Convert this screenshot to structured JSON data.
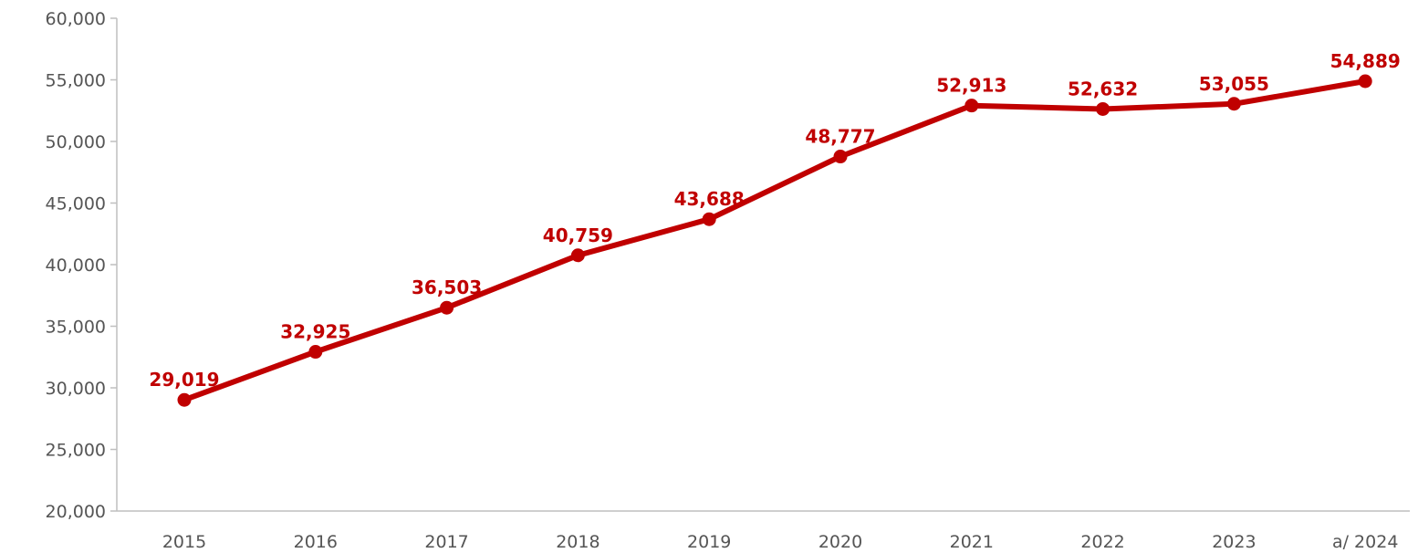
{
  "chart_data": {
    "type": "line",
    "categories": [
      "2015",
      "2016",
      "2017",
      "2018",
      "2019",
      "2020",
      "2021",
      "2022",
      "2023",
      "a/ 2024"
    ],
    "series": [
      {
        "values": [
          29019,
          32925,
          36503,
          40759,
          43688,
          48777,
          52913,
          52632,
          53055,
          54889
        ],
        "labels": [
          "29,019",
          "32,925",
          "36,503",
          "40,759",
          "43,688",
          "48,777",
          "52,913",
          "52,632",
          "53,055",
          "54,889"
        ]
      }
    ],
    "ylim": [
      20000,
      60000
    ],
    "ytick_values": [
      20000,
      25000,
      30000,
      35000,
      40000,
      45000,
      50000,
      55000,
      60000
    ],
    "ytick_labels": [
      "20,000",
      "25,000",
      "30,000",
      "35,000",
      "40,000",
      "45,000",
      "50,000",
      "55,000",
      "60,000"
    ],
    "grid": false,
    "colors": {
      "series": "#c00000",
      "axis": "#bfbfbf",
      "tick_text": "#555555"
    }
  }
}
